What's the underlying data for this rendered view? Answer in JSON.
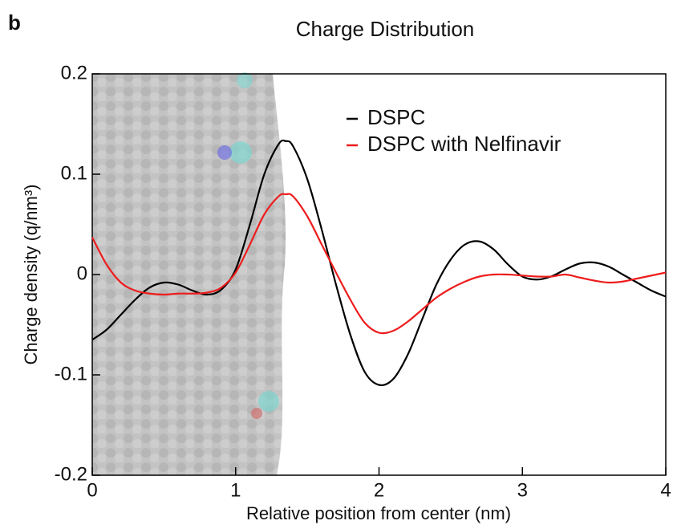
{
  "panel_label": "b",
  "chart_data": {
    "type": "line",
    "title": "Charge Distribution",
    "x_label": "Relative position from center (nm)",
    "y_label": "Charge density (q/nm³)",
    "x": [
      0,
      0.1,
      0.2,
      0.3,
      0.4,
      0.5,
      0.6,
      0.7,
      0.8,
      0.9,
      1.0,
      1.1,
      1.2,
      1.3,
      1.35,
      1.4,
      1.5,
      1.6,
      1.7,
      1.8,
      1.9,
      2.0,
      2.1,
      2.2,
      2.3,
      2.4,
      2.5,
      2.6,
      2.7,
      2.8,
      2.9,
      3.0,
      3.1,
      3.2,
      3.3,
      3.4,
      3.5,
      3.6,
      3.7,
      3.8,
      3.9,
      4.0
    ],
    "series": [
      {
        "name": "DSPC",
        "color": "#000000",
        "values": [
          -0.065,
          -0.055,
          -0.04,
          -0.025,
          -0.013,
          -0.008,
          -0.01,
          -0.016,
          -0.02,
          -0.015,
          0.005,
          0.05,
          0.1,
          0.13,
          0.133,
          0.128,
          0.095,
          0.045,
          -0.01,
          -0.06,
          -0.097,
          -0.11,
          -0.104,
          -0.08,
          -0.045,
          -0.01,
          0.015,
          0.03,
          0.033,
          0.025,
          0.01,
          -0.002,
          -0.005,
          -0.002,
          0.005,
          0.011,
          0.012,
          0.008,
          0,
          -0.008,
          -0.016,
          -0.022
        ]
      },
      {
        "name": "DSPC with Nelfinavir",
        "color": "#ee1c1c",
        "values": [
          0.037,
          0.01,
          -0.008,
          -0.016,
          -0.019,
          -0.02,
          -0.019,
          -0.019,
          -0.018,
          -0.013,
          0.002,
          0.03,
          0.06,
          0.078,
          0.08,
          0.078,
          0.058,
          0.03,
          0.002,
          -0.025,
          -0.048,
          -0.058,
          -0.056,
          -0.047,
          -0.035,
          -0.023,
          -0.014,
          -0.007,
          -0.002,
          0,
          0,
          -0.001,
          -0.002,
          -0.002,
          0,
          -0.003,
          -0.006,
          -0.008,
          -0.007,
          -0.004,
          -0.001,
          0.002
        ]
      }
    ],
    "xlim": [
      0,
      4
    ],
    "xticks": [
      0,
      1,
      2,
      3,
      4
    ],
    "ylim": [
      -0.2,
      0.2
    ],
    "yticks": [
      -0.2,
      -0.1,
      0,
      0.1,
      0.2
    ]
  }
}
